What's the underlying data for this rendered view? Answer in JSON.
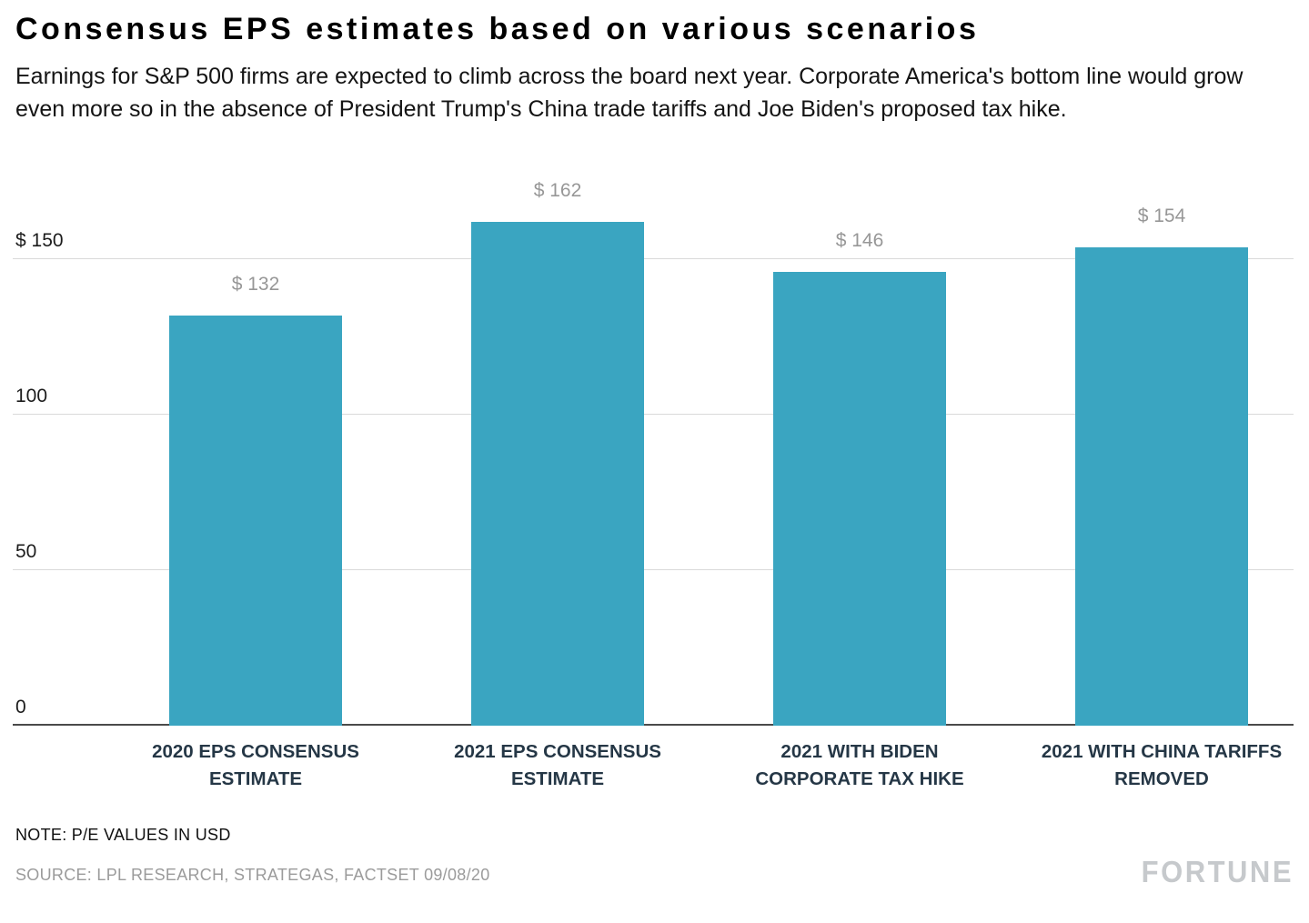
{
  "header": {
    "title": "Consensus EPS estimates based on various scenarios",
    "subtitle": "Earnings for S&P 500 firms are expected to climb across the board next year. Corporate America's bottom line would grow even more so in the absence of President Trump's China trade tariffs and Joe Biden's proposed tax hike."
  },
  "chart_data": {
    "type": "bar",
    "title": "Consensus EPS estimates based on various scenarios",
    "categories": [
      "2020 EPS CONSENSUS\nESTIMATE",
      "2021 EPS CONSENSUS\nESTIMATE",
      "2021 WITH BIDEN\nCORPORATE TAX HIKE",
      "2021 WITH CHINA TARIFFS\nREMOVED"
    ],
    "values": [
      132,
      162,
      146,
      154
    ],
    "value_labels": [
      "$ 132",
      "$ 162",
      "$ 146",
      "$ 154"
    ],
    "xlabel": "",
    "ylabel": "",
    "y_ticks": [
      0,
      50,
      100,
      150
    ],
    "y_tick_labels": [
      "0",
      "50",
      "100",
      "$ 150"
    ],
    "ylim": [
      0,
      175
    ],
    "grid": true,
    "legend_position": "none",
    "bar_color": "#3AA5C1",
    "units": "USD"
  },
  "footer": {
    "note": "NOTE: P/E VALUES IN USD",
    "source": "SOURCE: LPL RESEARCH, STRATEGAS, FACTSET 09/08/20",
    "brand": "FORTUNE"
  }
}
